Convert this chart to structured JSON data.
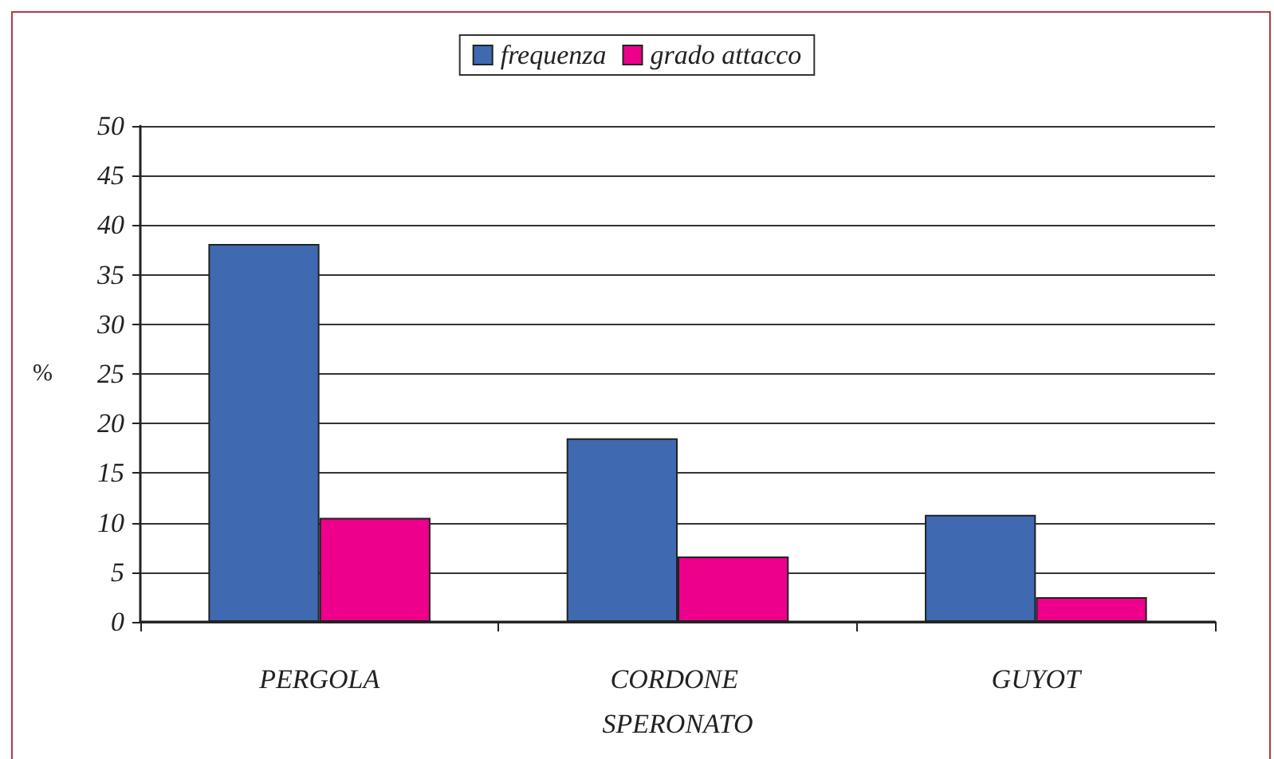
{
  "chart_data": {
    "type": "bar",
    "ylabel": "%",
    "categories": [
      "PERGOLA",
      "CORDONE SPERONATO",
      "GUYOT"
    ],
    "series": [
      {
        "name": "frequenza",
        "color": "#3f69b0",
        "values": [
          38.1,
          18.5,
          10.8
        ]
      },
      {
        "name": "grado attacco",
        "color": "#ec008c",
        "values": [
          10.5,
          6.6,
          2.5
        ]
      }
    ],
    "ylim": [
      0,
      50
    ],
    "yticks": [
      0,
      5,
      10,
      15,
      20,
      25,
      30,
      35,
      40,
      45,
      50
    ],
    "grid": "y",
    "legend": "top"
  }
}
